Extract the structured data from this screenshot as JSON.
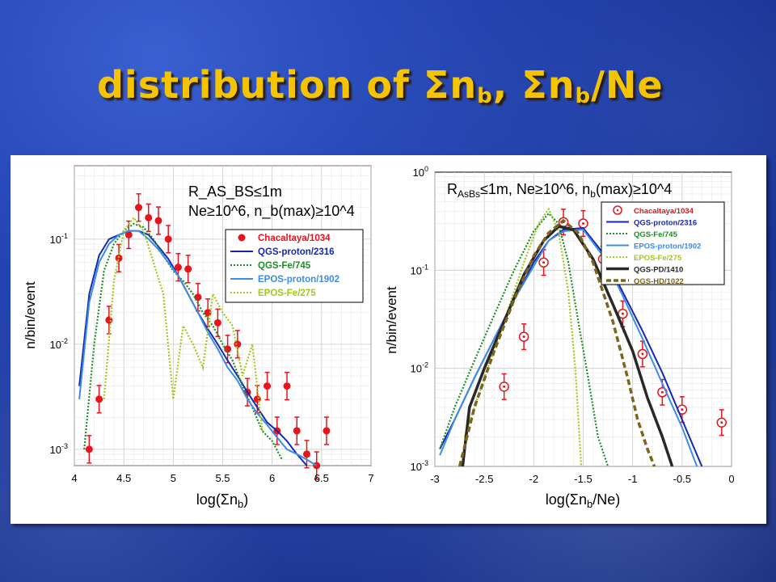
{
  "title": {
    "prefix": "distribution of ",
    "sigma1": "Σ",
    "n1": "n",
    "sub1": "b",
    "sep": ", ",
    "sigma2": "Σ",
    "n2": "n",
    "sub2": "b",
    "suffix": "/Ne"
  },
  "chart_data": [
    {
      "type": "line",
      "ylog": true,
      "xlim": [
        4,
        7
      ],
      "ylim": [
        0.0007,
        0.5
      ],
      "xticks": [
        "4",
        "4.5",
        "5",
        "5.5",
        "6",
        "6.5",
        "7"
      ],
      "xtick_values": [
        4,
        4.5,
        5,
        5.5,
        6,
        6.5,
        7
      ],
      "yticks": [
        {
          "label": "10",
          "exp": "-1",
          "value": 0.1
        },
        {
          "label": "10",
          "exp": "-2",
          "value": 0.01
        },
        {
          "label": "10",
          "exp": "-3",
          "value": 0.001
        }
      ],
      "xlabel": {
        "pre": "log(Σn",
        "sub": "b",
        "post": ")"
      },
      "ylabel": "n/bin/event",
      "annotation_lines": [
        "R_AS_BS≤1m",
        "Ne≥10^6, n_b(max)≥10^4"
      ],
      "legend_position": "right",
      "series": [
        {
          "name": "Chacaltaya/1034",
          "style": "points",
          "color": "#e8141c",
          "x": [
            4.15,
            4.25,
            4.35,
            4.45,
            4.55,
            4.65,
            4.75,
            4.85,
            4.95,
            5.05,
            5.15,
            5.25,
            5.35,
            5.45,
            5.55,
            5.65,
            5.75,
            5.85,
            5.95,
            6.05,
            6.15,
            6.25,
            6.35,
            6.45,
            6.55
          ],
          "y": [
            0.001,
            0.003,
            0.017,
            0.066,
            0.11,
            0.2,
            0.16,
            0.15,
            0.1,
            0.054,
            0.052,
            0.028,
            0.02,
            0.016,
            0.009,
            0.01,
            0.0035,
            0.003,
            0.004,
            0.0015,
            0.004,
            0.0015,
            0.0009,
            0.0007,
            0.0015
          ]
        },
        {
          "name": "QGS-proton/2316",
          "style": "solid",
          "color": "#1428b4",
          "x": [
            4.05,
            4.15,
            4.25,
            4.35,
            4.45,
            4.55,
            4.65,
            4.75,
            4.85,
            4.95,
            5.05,
            5.15,
            5.25,
            5.35,
            5.45,
            5.55,
            5.65,
            5.75,
            5.85,
            5.95,
            6.05,
            6.15,
            6.25,
            6.35
          ],
          "y": [
            0.004,
            0.03,
            0.07,
            0.1,
            0.11,
            0.12,
            0.12,
            0.11,
            0.085,
            0.065,
            0.045,
            0.03,
            0.02,
            0.014,
            0.01,
            0.007,
            0.005,
            0.0035,
            0.0025,
            0.0018,
            0.0015,
            0.0012,
            0.0009,
            0.0007
          ]
        },
        {
          "name": "QGS-Fe/745",
          "style": "dotted",
          "color": "#1e8c28",
          "x": [
            4.1,
            4.2,
            4.3,
            4.4,
            4.5,
            4.6,
            4.7,
            4.8,
            4.9,
            5.0,
            5.1,
            5.2,
            5.3,
            5.4,
            5.5,
            5.6,
            5.7,
            5.8,
            5.9,
            6.0,
            6.1
          ],
          "y": [
            0.001,
            0.01,
            0.05,
            0.09,
            0.12,
            0.14,
            0.13,
            0.1,
            0.07,
            0.05,
            0.04,
            0.03,
            0.02,
            0.015,
            0.01,
            0.007,
            0.004,
            0.0025,
            0.0015,
            0.0012,
            0.0008
          ]
        },
        {
          "name": "EPOS-proton/1902",
          "style": "solid",
          "color": "#3c8ce6",
          "x": [
            4.05,
            4.15,
            4.25,
            4.35,
            4.45,
            4.55,
            4.65,
            4.75,
            4.85,
            4.95,
            5.05,
            5.15,
            5.25,
            5.35,
            5.45,
            5.55,
            5.65,
            5.75,
            5.85,
            5.95,
            6.05,
            6.15,
            6.25,
            6.35,
            6.45
          ],
          "y": [
            0.003,
            0.025,
            0.06,
            0.09,
            0.11,
            0.12,
            0.12,
            0.1,
            0.08,
            0.06,
            0.045,
            0.03,
            0.02,
            0.013,
            0.009,
            0.006,
            0.0045,
            0.003,
            0.0022,
            0.0017,
            0.0013,
            0.001,
            0.0009,
            0.0008,
            0.0007
          ]
        },
        {
          "name": "EPOS-Fe/275",
          "style": "dotted",
          "color": "#a0c81e",
          "x": [
            4.3,
            4.4,
            4.5,
            4.6,
            4.7,
            4.8,
            4.9,
            5.0,
            5.1,
            5.2,
            5.3,
            5.4,
            5.5,
            5.6,
            5.7,
            5.8,
            5.9
          ],
          "y": [
            0.003,
            0.04,
            0.12,
            0.16,
            0.12,
            0.06,
            0.03,
            0.003,
            0.015,
            0.01,
            0.006,
            0.03,
            0.02,
            0.015,
            0.005,
            0.01,
            0.0015
          ]
        }
      ]
    },
    {
      "type": "line",
      "ylog": true,
      "xlim": [
        -3,
        0
      ],
      "ylim": [
        0.001,
        1
      ],
      "xticks": [
        "-3",
        "-2.5",
        "-2",
        "-1.5",
        "-1",
        "-0.5",
        "0"
      ],
      "xtick_values": [
        -3,
        -2.5,
        -2,
        -1.5,
        -1,
        -0.5,
        0
      ],
      "yticks": [
        {
          "label": "10",
          "exp": "0",
          "value": 1
        },
        {
          "label": "10",
          "exp": "-1",
          "value": 0.1
        },
        {
          "label": "10",
          "exp": "-2",
          "value": 0.01
        },
        {
          "label": "10",
          "exp": "-3",
          "value": 0.001
        }
      ],
      "xlabel": {
        "pre": "log(Σn",
        "sub": "b",
        "post": "/Ne)"
      },
      "ylabel": "n/bin/event",
      "annotation": {
        "p1": "R",
        "s1": "AsBs",
        "p2": "≤1m, Ne≥10^6, n",
        "s2": "b",
        "p3": "(max)≥10^4"
      },
      "legend_position": "right",
      "series": [
        {
          "name": "Chacaltaya/1034",
          "style": "circles",
          "color": "#e8141c",
          "x": [
            -2.3,
            -2.1,
            -1.9,
            -1.7,
            -1.5,
            -1.3,
            -1.1,
            -0.9,
            -0.7,
            -0.5,
            -0.1
          ],
          "y": [
            0.0065,
            0.021,
            0.12,
            0.31,
            0.3,
            0.13,
            0.036,
            0.014,
            0.0057,
            0.0038,
            0.0028
          ]
        },
        {
          "name": "QGS-proton/2316",
          "style": "solid",
          "color": "#1428b4",
          "x": [
            -2.95,
            -2.8,
            -2.6,
            -2.4,
            -2.2,
            -2.0,
            -1.85,
            -1.7,
            -1.5,
            -1.3,
            -1.1,
            -0.9,
            -0.7,
            -0.5,
            -0.3
          ],
          "y": [
            0.0015,
            0.003,
            0.008,
            0.02,
            0.05,
            0.12,
            0.2,
            0.26,
            0.27,
            0.15,
            0.06,
            0.024,
            0.009,
            0.003,
            0.001
          ]
        },
        {
          "name": "QGS-Fe/745",
          "style": "dotted",
          "color": "#1e8c28",
          "x": [
            -2.95,
            -2.8,
            -2.6,
            -2.4,
            -2.2,
            -2.0,
            -1.85,
            -1.75,
            -1.65,
            -1.55,
            -1.45,
            -1.35,
            -1.25
          ],
          "y": [
            0.0015,
            0.004,
            0.012,
            0.035,
            0.1,
            0.25,
            0.38,
            0.3,
            0.12,
            0.03,
            0.008,
            0.002,
            0.001
          ]
        },
        {
          "name": "EPOS-proton/1902",
          "style": "solid",
          "color": "#3c8ce6",
          "x": [
            -2.95,
            -2.8,
            -2.6,
            -2.4,
            -2.2,
            -2.0,
            -1.85,
            -1.7,
            -1.5,
            -1.3,
            -1.1,
            -0.9,
            -0.7,
            -0.5,
            -0.35
          ],
          "y": [
            0.0013,
            0.003,
            0.008,
            0.02,
            0.05,
            0.11,
            0.2,
            0.25,
            0.26,
            0.14,
            0.055,
            0.02,
            0.007,
            0.0025,
            0.001
          ]
        },
        {
          "name": "EPOS-Fe/275",
          "style": "dotted",
          "color": "#a0c81e",
          "x": [
            -2.7,
            -2.5,
            -2.3,
            -2.1,
            -1.95,
            -1.85,
            -1.75,
            -1.65,
            -1.58,
            -1.52
          ],
          "y": [
            0.002,
            0.008,
            0.03,
            0.12,
            0.3,
            0.42,
            0.25,
            0.06,
            0.01,
            0.001
          ]
        },
        {
          "name": "QGS-PD/1410",
          "style": "thick",
          "color": "#282828",
          "x": [
            -2.72,
            -2.65,
            -2.5,
            -2.3,
            -2.1,
            -1.9,
            -1.75,
            -1.6,
            -1.4,
            -1.2,
            -1.0,
            -0.85,
            -0.7,
            -0.6
          ],
          "y": [
            0.001,
            0.004,
            0.01,
            0.03,
            0.09,
            0.2,
            0.28,
            0.26,
            0.13,
            0.045,
            0.015,
            0.005,
            0.002,
            0.001
          ]
        },
        {
          "name": "QGS-HD/1022",
          "style": "dashed",
          "color": "#7c641e",
          "x": [
            -2.75,
            -2.6,
            -2.4,
            -2.2,
            -2.0,
            -1.85,
            -1.7,
            -1.55,
            -1.4,
            -1.2,
            -1.05,
            -0.95,
            -0.85,
            -0.78
          ],
          "y": [
            0.001,
            0.004,
            0.015,
            0.05,
            0.14,
            0.24,
            0.32,
            0.24,
            0.12,
            0.03,
            0.008,
            0.003,
            0.0015,
            0.001
          ]
        }
      ]
    }
  ]
}
